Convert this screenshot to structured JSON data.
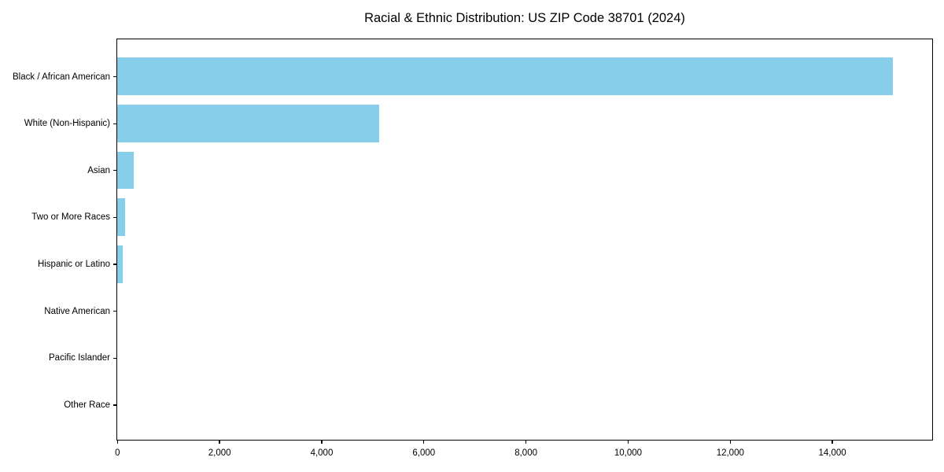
{
  "figure": {
    "background": "#ffffff",
    "bar_color": "#87CEEB",
    "axis_color": "#000000",
    "text_color": "#000000"
  },
  "chart_data": {
    "type": "bar",
    "orientation": "horizontal",
    "title": "Racial & Ethnic Distribution: US ZIP Code 38701 (2024)",
    "categories": [
      "Black / African American",
      "White (Non-Hispanic)",
      "Asian",
      "Two or More Races",
      "Hispanic or Latino",
      "Native American",
      "Pacific Islander",
      "Other Race"
    ],
    "values": [
      15190,
      5130,
      320,
      150,
      115,
      0,
      0,
      0
    ],
    "xlabel": "",
    "ylabel": "",
    "xlim": [
      0,
      15950
    ],
    "x_ticks": [
      0,
      2000,
      4000,
      6000,
      8000,
      10000,
      12000,
      14000
    ],
    "x_tick_labels": [
      "0",
      "2,000",
      "4,000",
      "6,000",
      "8,000",
      "10,000",
      "12,000",
      "14,000"
    ],
    "grid": false,
    "legend": null,
    "value_labels_shown": false
  }
}
